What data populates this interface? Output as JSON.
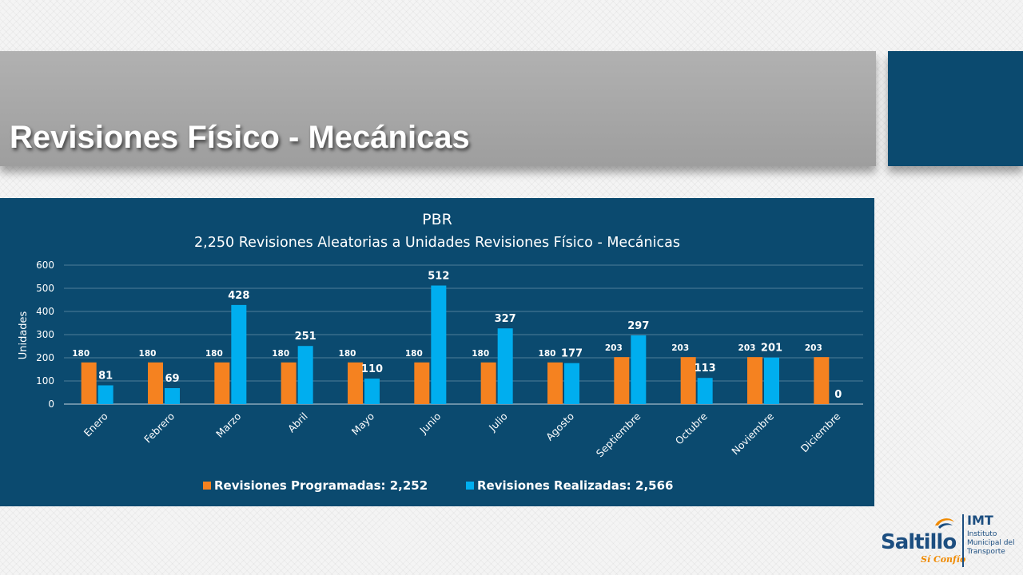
{
  "slide": {
    "title": "Revisiones Físico - Mecánicas"
  },
  "logo": {
    "name": "Saltillo",
    "tagline": "Sí Confío",
    "org_short": "IMT",
    "org_full": "Instituto Municipal del Transporte"
  },
  "colors": {
    "panel_bg": "#0b4a6f",
    "programadas": "#f58220",
    "realizadas": "#00aeef",
    "text": "#ffffff"
  },
  "chart_data": {
    "type": "bar",
    "title": "PBR",
    "subtitle": "2,250 Revisiones Aleatorias a Unidades Revisiones Físico - Mecánicas",
    "xlabel": "",
    "ylabel": "Unidades",
    "ylim": [
      0,
      600
    ],
    "yticks": [
      "0",
      "100",
      "200",
      "300",
      "400",
      "500",
      "600"
    ],
    "grid": true,
    "legend_position": "bottom",
    "categories": [
      "Enero",
      "Febrero",
      "Marzo",
      "Abril",
      "Mayo",
      "Junio",
      "Julio",
      "Agosto",
      "Septiembre",
      "Octubre",
      "Noviembre",
      "Diciembre"
    ],
    "series": [
      {
        "name": "Revisiones Programadas: 2,252",
        "values": [
          180,
          180,
          180,
          180,
          180,
          180,
          180,
          180,
          203,
          203,
          203,
          203
        ]
      },
      {
        "name": "Revisiones Realizadas: 2,566",
        "values": [
          81,
          69,
          428,
          251,
          110,
          512,
          327,
          177,
          297,
          113,
          201,
          0
        ]
      }
    ]
  }
}
